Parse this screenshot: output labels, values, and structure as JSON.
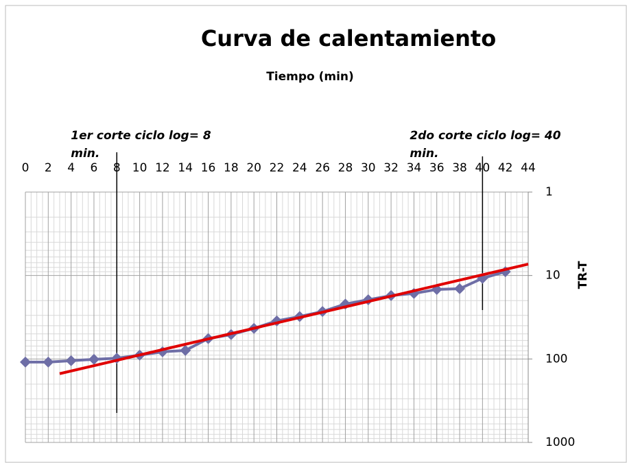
{
  "chart_data": {
    "type": "line",
    "title": "Curva de calentamiento",
    "xlabel": "Tiempo (min)",
    "ylabel": "TR-T",
    "x": [
      0,
      2,
      4,
      6,
      8,
      10,
      12,
      14,
      16,
      18,
      20,
      22,
      24,
      26,
      28,
      30,
      32,
      34,
      36,
      38,
      40,
      42
    ],
    "series": [
      {
        "color": "#6e6ea6",
        "values": [
          109,
          109,
          105,
          101,
          98,
          90,
          82,
          79,
          57,
          51,
          43,
          35,
          31,
          27,
          22,
          19.5,
          17.4,
          16.4,
          14.7,
          14.4,
          10.8,
          9
        ]
      }
    ],
    "trendline": {
      "color": "#e00000",
      "x": [
        3,
        44
      ],
      "values": [
        150,
        7.3
      ]
    },
    "xlim": [
      0,
      44
    ],
    "xticks": [
      0,
      2,
      4,
      6,
      8,
      10,
      12,
      14,
      16,
      18,
      20,
      22,
      24,
      26,
      28,
      30,
      32,
      34,
      36,
      38,
      40,
      42,
      44
    ],
    "ylim": [
      1,
      1000
    ],
    "yticks": [
      1,
      10,
      100,
      1000
    ],
    "ylog": true,
    "yreversed": true,
    "xaxis_position": "top",
    "yaxis_position": "right",
    "grid": true,
    "annotations": [
      {
        "text": "1er corte ciclo log= 8 min.",
        "x": 8
      },
      {
        "text": "2do corte ciclo log= 40 min.",
        "x": 40
      }
    ]
  }
}
